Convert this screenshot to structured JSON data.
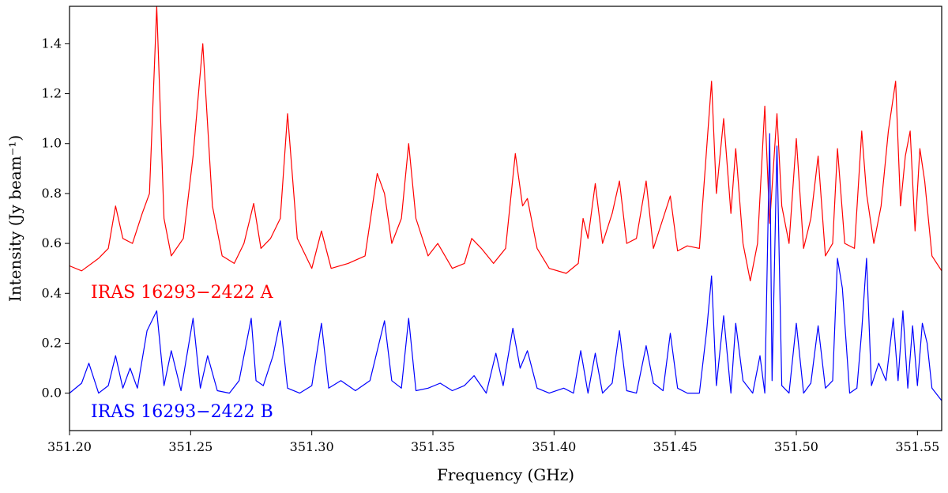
{
  "chart_data": {
    "type": "line",
    "xlabel": "Frequency (GHz)",
    "ylabel": "Intensity (Jy beam⁻¹)",
    "xlim": [
      351.2,
      351.56
    ],
    "ylim": [
      -0.15,
      1.55
    ],
    "xticks": [
      351.2,
      351.25,
      351.3,
      351.35,
      351.4,
      351.45,
      351.5,
      351.55
    ],
    "xtick_labels": [
      "351.20",
      "351.25",
      "351.30",
      "351.35",
      "351.40",
      "351.45",
      "351.50",
      "351.55"
    ],
    "yticks": [
      0.0,
      0.2,
      0.4,
      0.6,
      0.8,
      1.0,
      1.2,
      1.4
    ],
    "ytick_labels": [
      "0.0",
      "0.2",
      "0.4",
      "0.6",
      "0.8",
      "1.0",
      "1.2",
      "1.4"
    ],
    "grid": false,
    "series": [
      {
        "name": "IRAS 16293−2422 A",
        "color": "#ff0000",
        "x": [
          351.2,
          351.205,
          351.212,
          351.216,
          351.219,
          351.222,
          351.226,
          351.23,
          351.233,
          351.236,
          351.239,
          351.242,
          351.247,
          351.251,
          351.255,
          351.259,
          351.263,
          351.268,
          351.272,
          351.276,
          351.279,
          351.283,
          351.287,
          351.29,
          351.294,
          351.3,
          351.304,
          351.308,
          351.315,
          351.322,
          351.327,
          351.33,
          351.333,
          351.337,
          351.34,
          351.343,
          351.348,
          351.352,
          351.358,
          351.363,
          351.366,
          351.37,
          351.375,
          351.38,
          351.384,
          351.387,
          351.389,
          351.393,
          351.398,
          351.405,
          351.41,
          351.412,
          351.414,
          351.417,
          351.42,
          351.424,
          351.427,
          351.43,
          351.434,
          351.438,
          351.441,
          351.445,
          351.448,
          351.451,
          351.455,
          351.46,
          351.465,
          351.467,
          351.47,
          351.473,
          351.475,
          351.478,
          351.481,
          351.484,
          351.487,
          351.489,
          351.492,
          351.494,
          351.497,
          351.5,
          351.503,
          351.506,
          351.509,
          351.512,
          351.515,
          351.517,
          351.52,
          351.524,
          351.527,
          351.529,
          351.532,
          351.535,
          351.538,
          351.541,
          351.543,
          351.545,
          351.547,
          351.549,
          351.551,
          351.553,
          351.556,
          351.56
        ],
        "y": [
          0.51,
          0.49,
          0.54,
          0.58,
          0.75,
          0.62,
          0.6,
          0.72,
          0.8,
          1.55,
          0.7,
          0.55,
          0.62,
          0.95,
          1.4,
          0.75,
          0.55,
          0.52,
          0.6,
          0.76,
          0.58,
          0.62,
          0.7,
          1.12,
          0.62,
          0.5,
          0.65,
          0.5,
          0.52,
          0.55,
          0.88,
          0.8,
          0.6,
          0.7,
          1.0,
          0.7,
          0.55,
          0.6,
          0.5,
          0.52,
          0.62,
          0.58,
          0.52,
          0.58,
          0.96,
          0.75,
          0.78,
          0.58,
          0.5,
          0.48,
          0.52,
          0.7,
          0.62,
          0.84,
          0.6,
          0.72,
          0.85,
          0.6,
          0.62,
          0.85,
          0.58,
          0.7,
          0.79,
          0.57,
          0.59,
          0.58,
          1.25,
          0.8,
          1.1,
          0.72,
          0.98,
          0.6,
          0.45,
          0.6,
          1.15,
          0.68,
          1.12,
          0.75,
          0.6,
          1.02,
          0.58,
          0.7,
          0.95,
          0.55,
          0.6,
          0.98,
          0.6,
          0.58,
          1.05,
          0.8,
          0.6,
          0.75,
          1.05,
          1.25,
          0.75,
          0.95,
          1.05,
          0.65,
          0.98,
          0.85,
          0.55,
          0.49
        ]
      },
      {
        "name": "IRAS 16293−2422 B",
        "color": "#0000ff",
        "x": [
          351.2,
          351.205,
          351.208,
          351.212,
          351.216,
          351.219,
          351.222,
          351.225,
          351.228,
          351.232,
          351.236,
          351.239,
          351.242,
          351.246,
          351.251,
          351.254,
          351.257,
          351.261,
          351.266,
          351.27,
          351.275,
          351.277,
          351.28,
          351.284,
          351.287,
          351.29,
          351.295,
          351.3,
          351.304,
          351.307,
          351.312,
          351.318,
          351.324,
          351.33,
          351.333,
          351.337,
          351.34,
          351.343,
          351.348,
          351.353,
          351.358,
          351.363,
          351.367,
          351.372,
          351.376,
          351.379,
          351.383,
          351.386,
          351.389,
          351.393,
          351.398,
          351.404,
          351.408,
          351.411,
          351.414,
          351.417,
          351.42,
          351.424,
          351.427,
          351.43,
          351.434,
          351.438,
          351.441,
          351.445,
          351.448,
          351.451,
          351.455,
          351.46,
          351.463,
          351.465,
          351.467,
          351.47,
          351.473,
          351.475,
          351.478,
          351.482,
          351.485,
          351.487,
          351.489,
          351.49,
          351.492,
          351.494,
          351.497,
          351.5,
          351.503,
          351.506,
          351.509,
          351.512,
          351.515,
          351.517,
          351.519,
          351.522,
          351.525,
          351.527,
          351.529,
          351.531,
          351.534,
          351.537,
          351.54,
          351.542,
          351.544,
          351.546,
          351.548,
          351.55,
          351.552,
          351.554,
          351.556,
          351.56
        ],
        "y": [
          0.0,
          0.04,
          0.12,
          0.0,
          0.03,
          0.15,
          0.02,
          0.1,
          0.02,
          0.25,
          0.33,
          0.03,
          0.17,
          0.01,
          0.3,
          0.02,
          0.15,
          0.01,
          0.0,
          0.05,
          0.3,
          0.05,
          0.03,
          0.15,
          0.29,
          0.02,
          0.0,
          0.03,
          0.28,
          0.02,
          0.05,
          0.01,
          0.05,
          0.29,
          0.05,
          0.02,
          0.3,
          0.01,
          0.02,
          0.04,
          0.01,
          0.03,
          0.07,
          0.0,
          0.16,
          0.03,
          0.26,
          0.1,
          0.17,
          0.02,
          0.0,
          0.02,
          0.0,
          0.17,
          0.0,
          0.16,
          0.0,
          0.04,
          0.25,
          0.01,
          0.0,
          0.19,
          0.04,
          0.01,
          0.24,
          0.02,
          0.0,
          0.0,
          0.25,
          0.47,
          0.03,
          0.31,
          0.0,
          0.28,
          0.05,
          0.0,
          0.15,
          0.0,
          1.04,
          0.05,
          0.99,
          0.03,
          0.0,
          0.28,
          0.0,
          0.04,
          0.27,
          0.02,
          0.05,
          0.54,
          0.42,
          0.0,
          0.02,
          0.25,
          0.54,
          0.03,
          0.12,
          0.05,
          0.3,
          0.05,
          0.33,
          0.02,
          0.27,
          0.03,
          0.28,
          0.2,
          0.02,
          -0.03
        ]
      }
    ]
  }
}
